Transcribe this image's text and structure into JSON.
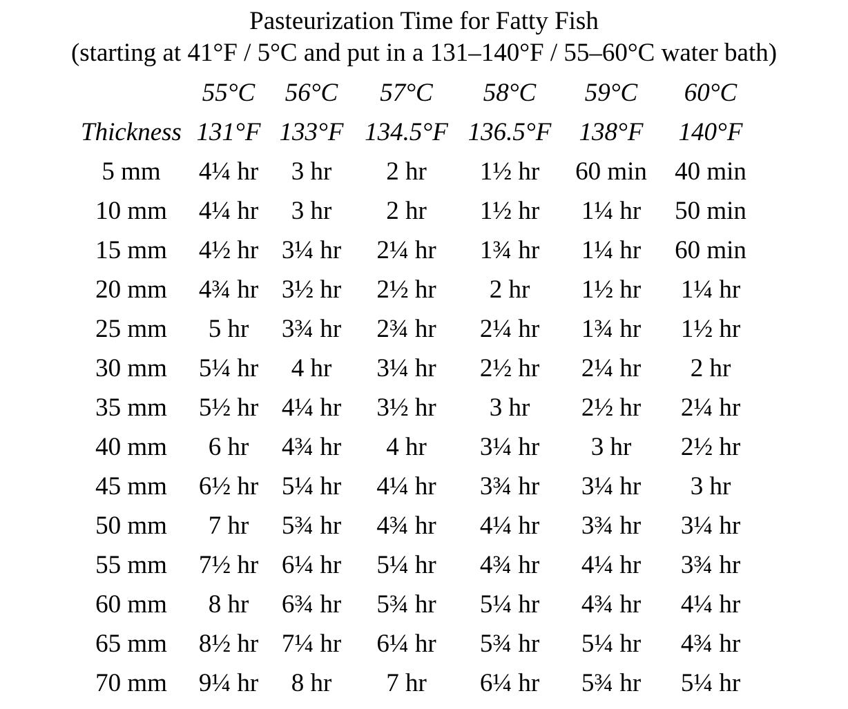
{
  "title": {
    "line1": "Pasteurization Time for Fatty Fish",
    "line2": "(starting at 41°F / 5°C and put in a 131–140°F / 55–60°C water bath)"
  },
  "table": {
    "celsius_headers": [
      "",
      "55°C",
      "56°C",
      "57°C",
      "58°C",
      "59°C",
      "60°C"
    ],
    "fahrenheit_headers": [
      "Thickness",
      "131°F",
      "133°F",
      "134.5°F",
      "136.5°F",
      "138°F",
      "140°F"
    ],
    "rows": [
      [
        "5 mm",
        "4¼ hr",
        "3 hr",
        "2 hr",
        "1½ hr",
        "60 min",
        "40 min"
      ],
      [
        "10 mm",
        "4¼ hr",
        "3 hr",
        "2 hr",
        "1½ hr",
        "1¼ hr",
        "50 min"
      ],
      [
        "15 mm",
        "4½ hr",
        "3¼ hr",
        "2¼ hr",
        "1¾ hr",
        "1¼ hr",
        "60 min"
      ],
      [
        "20 mm",
        "4¾ hr",
        "3½ hr",
        "2½ hr",
        "2 hr",
        "1½ hr",
        "1¼ hr"
      ],
      [
        "25 mm",
        "5 hr",
        "3¾ hr",
        "2¾ hr",
        "2¼ hr",
        "1¾ hr",
        "1½ hr"
      ],
      [
        "30 mm",
        "5¼ hr",
        "4 hr",
        "3¼ hr",
        "2½ hr",
        "2¼ hr",
        "2 hr"
      ],
      [
        "35 mm",
        "5½ hr",
        "4¼ hr",
        "3½ hr",
        "3 hr",
        "2½ hr",
        "2¼ hr"
      ],
      [
        "40 mm",
        "6 hr",
        "4¾ hr",
        "4 hr",
        "3¼ hr",
        "3 hr",
        "2½ hr"
      ],
      [
        "45 mm",
        "6½ hr",
        "5¼ hr",
        "4¼ hr",
        "3¾ hr",
        "3¼ hr",
        "3 hr"
      ],
      [
        "50 mm",
        "7 hr",
        "5¾ hr",
        "4¾ hr",
        "4¼ hr",
        "3¾ hr",
        "3¼ hr"
      ],
      [
        "55 mm",
        "7½ hr",
        "6¼ hr",
        "5¼ hr",
        "4¾ hr",
        "4¼ hr",
        "3¾ hr"
      ],
      [
        "60 mm",
        "8 hr",
        "6¾ hr",
        "5¾ hr",
        "5¼ hr",
        "4¾ hr",
        "4¼ hr"
      ],
      [
        "65 mm",
        "8½ hr",
        "7¼ hr",
        "6¼ hr",
        "5¾ hr",
        "5¼ hr",
        "4¾ hr"
      ],
      [
        "70 mm",
        "9¼ hr",
        "8 hr",
        "7 hr",
        "6¼ hr",
        "5¾ hr",
        "5¼ hr"
      ]
    ]
  }
}
